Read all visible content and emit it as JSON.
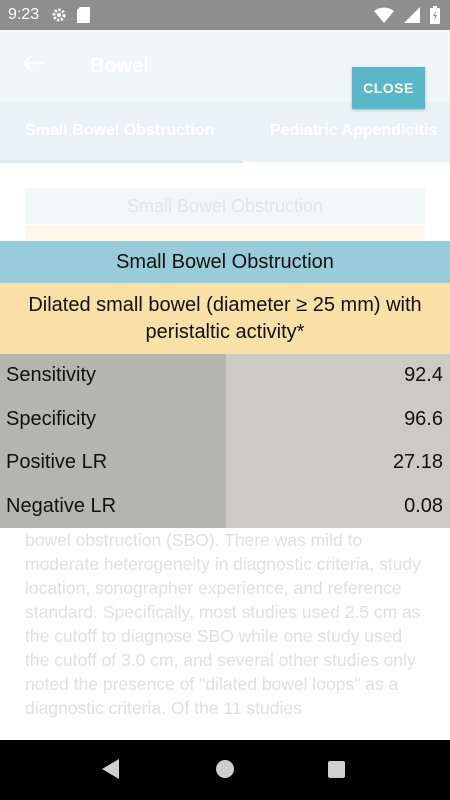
{
  "status_bar": {
    "time": "9:23",
    "icons": [
      "gear-icon",
      "sd-card-icon",
      "wifi-icon",
      "signal-icon",
      "battery-icon"
    ]
  },
  "toolbar": {
    "title": "Bowel",
    "back_icon": "arrow-left-icon"
  },
  "tabs": [
    {
      "label": "Small Bowel Obstruction",
      "active": true
    },
    {
      "label": "Pediatric Appendicitis",
      "active": false
    }
  ],
  "background": {
    "card_title": "Small Bowel Obstruction",
    "paragraph": "bowel obstruction (SBO). There was mild to moderate heterogeneity in diagnostic criteria, study location, sonographer experience, and reference standard. Specifically, most studies used 2.5 cm as the cutoff to diagnose SBO while one study used the cutoff of 3.0 cm, and several other studies only noted the presence of \"dilated bowel loops\" as a diagnostic criteria. Of the 11 studies"
  },
  "close_button": {
    "label": "CLOSE"
  },
  "dialog": {
    "title": "Small Bowel Obstruction",
    "subtitle": "Dilated small bowel (diameter ≥ 25 mm) with peristaltic activity*",
    "rows": [
      {
        "label": "Sensitivity",
        "value": "92.4"
      },
      {
        "label": "Specificity",
        "value": "96.6"
      },
      {
        "label": "Positive LR",
        "value": "27.18"
      },
      {
        "label": "Negative LR",
        "value": "0.08"
      }
    ]
  },
  "colors": {
    "title_bg": "#99ccd9",
    "subtitle_bg": "#f8e0a6",
    "label_col_bg": "#b4b6ad",
    "value_col_bg": "#cbcbc4",
    "close_bg": "#5ab7c9"
  }
}
